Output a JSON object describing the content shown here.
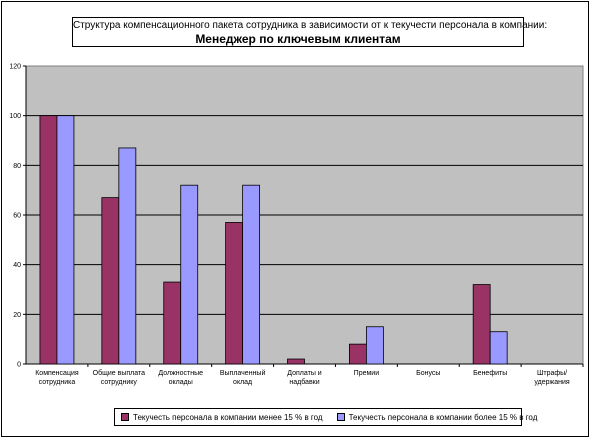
{
  "title": {
    "line1": "Структура компенсационного пакета сотрудника в зависимости от к текучести персонала в компании:",
    "line2": "Менеджер по ключевым клиентам"
  },
  "colors": {
    "plot_bg": "#c0c0c0",
    "series1": "#993366",
    "series2": "#9999ff",
    "grid": "#000000"
  },
  "chart_data": {
    "type": "bar",
    "title": "Структура компенсационного пакета сотрудника в зависимости от к текучести персонала в компании: Менеджер по ключевым клиентам",
    "categories": [
      [
        "Компенсация",
        "сотрудника"
      ],
      [
        "Общие выплата",
        "сотруднику"
      ],
      [
        "Должностные",
        "оклады"
      ],
      [
        "Выплаченный",
        "оклад"
      ],
      [
        "Доплаты и",
        "надбавки"
      ],
      [
        "Премии"
      ],
      [
        "Бонусы"
      ],
      [
        "Бенефиты"
      ],
      [
        "Штрафы/",
        "удержания"
      ]
    ],
    "series": [
      {
        "name": "Текучесть персонала в компании менее 15 % в год",
        "values": [
          100,
          67,
          33,
          57,
          2,
          8,
          0,
          32,
          0
        ]
      },
      {
        "name": "Текучесть персонала в компании более 15 % в год",
        "values": [
          100,
          87,
          72,
          72,
          0,
          15,
          0,
          13,
          0
        ]
      }
    ],
    "ylim": [
      0,
      120
    ],
    "yticks": [
      0,
      20,
      40,
      60,
      80,
      100,
      120
    ],
    "grid": true,
    "legend_position": "bottom",
    "xlabel": "",
    "ylabel": ""
  }
}
